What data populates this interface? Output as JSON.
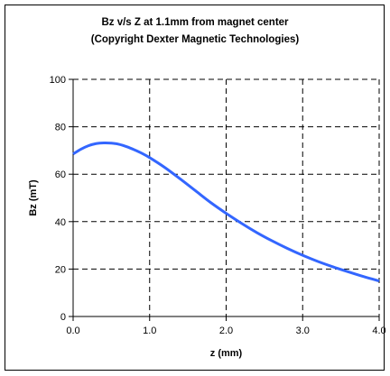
{
  "chart_data": {
    "type": "line",
    "title": "Bz v/s Z at 1.1mm from magnet center",
    "subtitle": "(Copyright Dexter Magnetic Technologies)",
    "xlabel": "z (mm)",
    "ylabel": "Bz (mT)",
    "xlim": [
      0.0,
      4.0
    ],
    "ylim": [
      0,
      100
    ],
    "x_ticks": [
      "0.0",
      "1.0",
      "2.0",
      "3.0",
      "4.0"
    ],
    "y_ticks": [
      "0",
      "20",
      "40",
      "60",
      "80",
      "100"
    ],
    "grid": true,
    "legend": "none",
    "series_color": "#3366ff",
    "series": [
      {
        "x": [
          0.0,
          0.1,
          0.2,
          0.3,
          0.4,
          0.5,
          0.6,
          0.7,
          0.8,
          0.9,
          1.0,
          1.2,
          1.4,
          1.6,
          1.8,
          2.0,
          2.2,
          2.4,
          2.6,
          2.8,
          3.0,
          3.2,
          3.4,
          3.6,
          3.8,
          4.0
        ],
        "y": [
          68.5,
          70.5,
          72.0,
          72.9,
          73.2,
          73.1,
          72.6,
          71.6,
          70.3,
          68.8,
          67.0,
          62.8,
          58.0,
          53.0,
          48.0,
          43.5,
          39.3,
          35.4,
          31.9,
          28.7,
          25.8,
          23.2,
          20.9,
          18.8,
          16.8,
          15.0
        ]
      }
    ]
  }
}
